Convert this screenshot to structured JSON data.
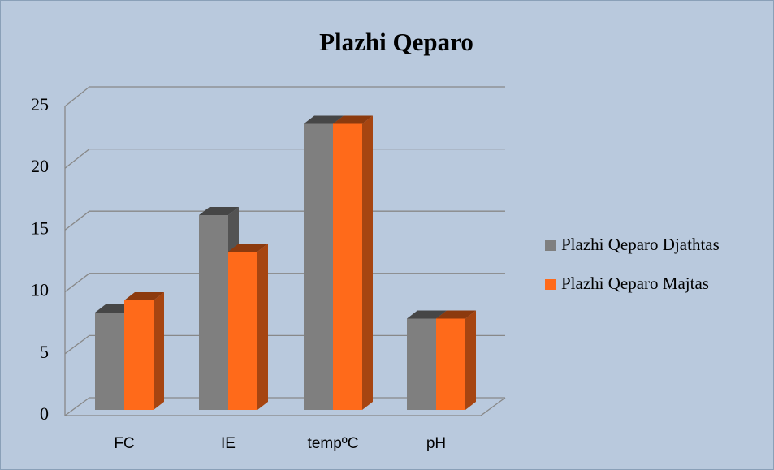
{
  "chart_data": {
    "type": "bar3d",
    "title": "Plazhi Qeparo",
    "categories": [
      "FC",
      "IE",
      "tempºC",
      "pH"
    ],
    "series": [
      {
        "name": "Plazhi Qeparo Djathtas",
        "color": "#7f7f7f",
        "values": [
          8,
          16,
          23.5,
          7.5
        ]
      },
      {
        "name": "Plazhi Qeparo Majtas",
        "color": "#ff6a1a",
        "values": [
          9,
          13,
          23.5,
          7.5
        ]
      }
    ],
    "ylim": [
      0,
      25
    ],
    "yticks": [
      0,
      5,
      10,
      15,
      20,
      25
    ],
    "grid": true,
    "legend": "right"
  }
}
